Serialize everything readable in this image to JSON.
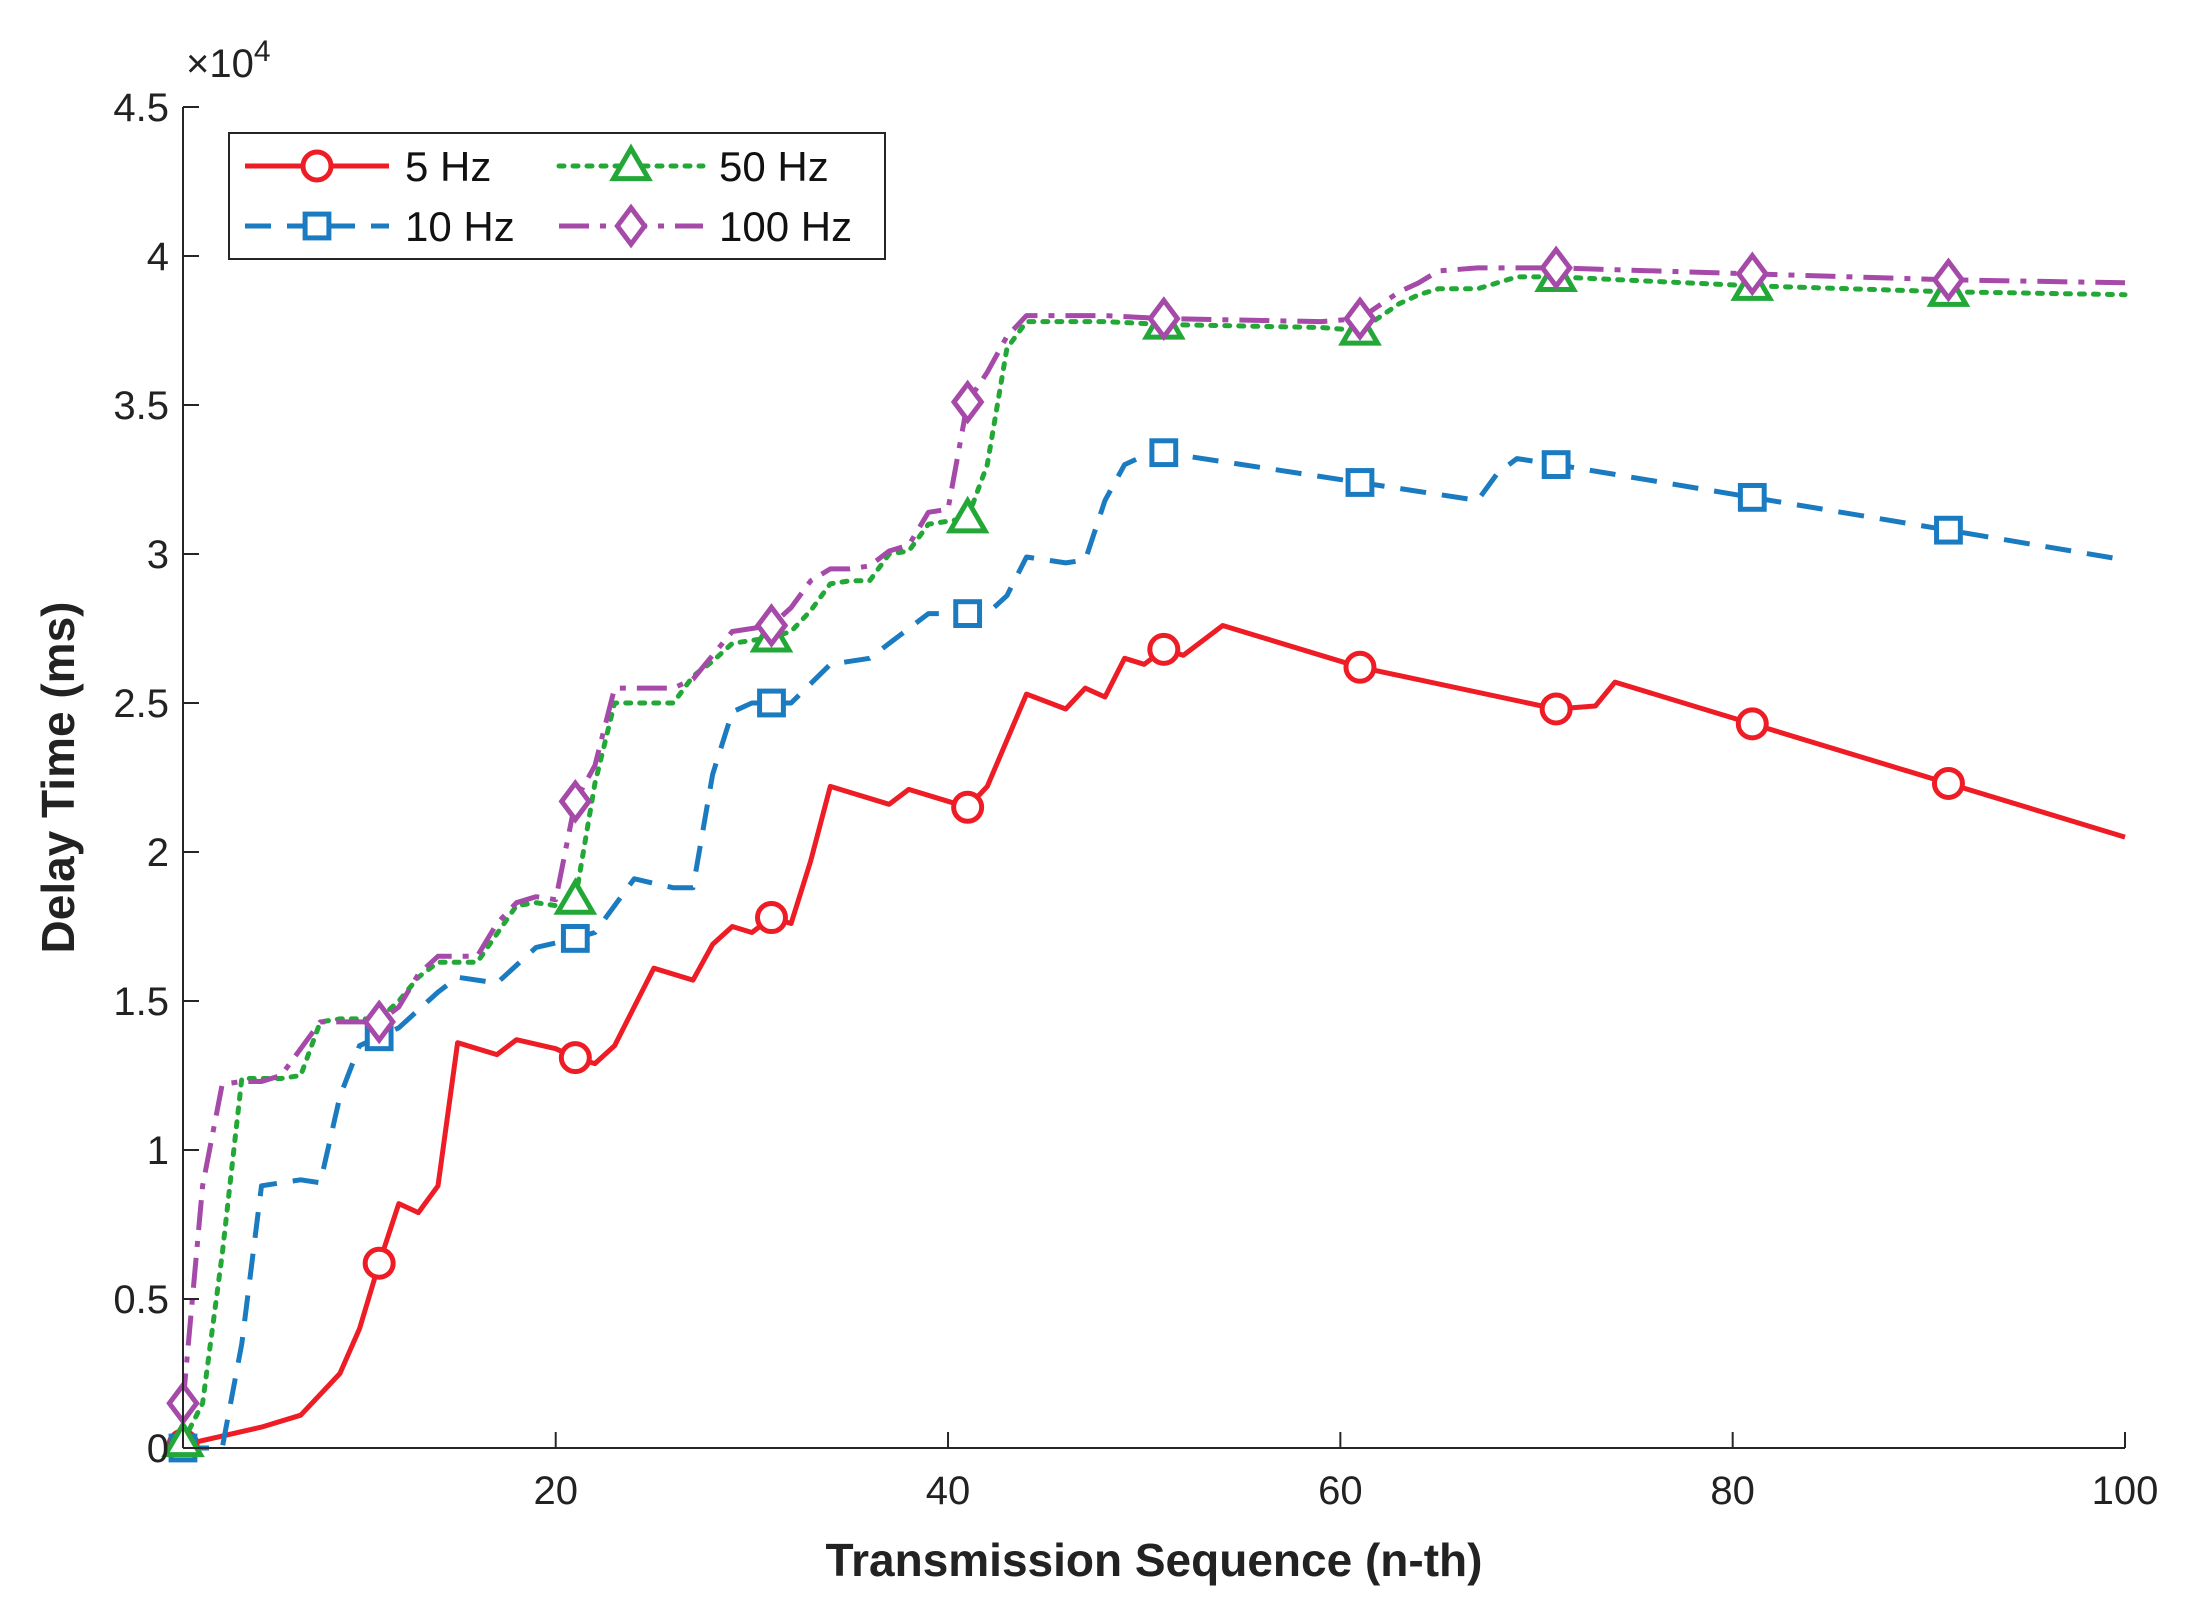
{
  "chart_data": {
    "type": "line",
    "xlabel": "Transmission Sequence (n-th)",
    "ylabel": "Delay Time (ms)",
    "y_exponent_label": "×10",
    "y_exponent_power": "4",
    "xlim": [
      1,
      100
    ],
    "ylim": [
      0,
      45000
    ],
    "xticks": [
      20,
      40,
      60,
      80,
      100
    ],
    "xtick_labels": [
      "20",
      "40",
      "60",
      "80",
      "100"
    ],
    "yticks": [
      0,
      5000,
      10000,
      15000,
      20000,
      25000,
      30000,
      35000,
      40000,
      45000
    ],
    "ytick_labels": [
      "0",
      "0.5",
      "1",
      "1.5",
      "2",
      "2.5",
      "3",
      "3.5",
      "4",
      "4.5"
    ],
    "grid": false,
    "legend_position": "top-left",
    "series": [
      {
        "name": "5 Hz",
        "color": "#ee1c25",
        "dash": "solid",
        "marker": "circle",
        "marker_x": [
          1,
          11,
          21,
          31,
          41,
          51,
          61,
          71,
          81,
          91
        ],
        "x": [
          1,
          3,
          5,
          7,
          9,
          10,
          11,
          12,
          13,
          14,
          15,
          17,
          18,
          20,
          21,
          22,
          23,
          25,
          27,
          28,
          29,
          30,
          31,
          32,
          33,
          34,
          35,
          37,
          38,
          40,
          41,
          42,
          44,
          46,
          47,
          48,
          49,
          50,
          51,
          52,
          54,
          61,
          71,
          73,
          74,
          81,
          91,
          100
        ],
        "y": [
          100,
          400,
          700,
          1100,
          2500,
          4000,
          6200,
          8200,
          7900,
          8800,
          13600,
          13200,
          13700,
          13400,
          13100,
          12900,
          13500,
          16100,
          15700,
          16900,
          17500,
          17300,
          17800,
          17600,
          19700,
          22200,
          22000,
          21600,
          22100,
          21700,
          21500,
          22200,
          25300,
          24800,
          25500,
          25200,
          26500,
          26300,
          26800,
          26600,
          27600,
          26200,
          24800,
          24900,
          25700,
          24300,
          22300,
          20500
        ]
      },
      {
        "name": "10 Hz",
        "color": "#1a7bc1",
        "dash": "dash",
        "marker": "square",
        "marker_x": [
          1,
          11,
          21,
          31,
          41,
          51,
          61,
          71,
          81,
          91
        ],
        "x": [
          1,
          3,
          4,
          5,
          7,
          8,
          9,
          10,
          11,
          12,
          14,
          15,
          17,
          19,
          21,
          22,
          23,
          24,
          26,
          27,
          28,
          29,
          30,
          31,
          32,
          34,
          35,
          36,
          37,
          38,
          39,
          41,
          42,
          43,
          44,
          46,
          47,
          48,
          49,
          50,
          51,
          61,
          67,
          68,
          69,
          71,
          81,
          91,
          100
        ],
        "y": [
          0,
          0,
          3500,
          8800,
          9000,
          8900,
          11800,
          13500,
          13800,
          14100,
          15300,
          15800,
          15600,
          16800,
          17100,
          17300,
          18200,
          19100,
          18800,
          18800,
          22600,
          24700,
          25000,
          25000,
          25000,
          26300,
          26400,
          26500,
          27000,
          27500,
          28000,
          28000,
          28000,
          28600,
          29900,
          29700,
          29800,
          31800,
          33000,
          33300,
          33400,
          32400,
          31800,
          32700,
          33200,
          33000,
          31900,
          30800,
          29800
        ]
      },
      {
        "name": "50 Hz",
        "color": "#23a838",
        "dash": "dot",
        "marker": "triangle",
        "marker_x": [
          1,
          21,
          31,
          41,
          51,
          61,
          71,
          81,
          91
        ],
        "x": [
          1,
          2,
          3,
          4,
          6,
          7,
          8,
          9,
          10,
          11,
          12,
          13,
          14,
          16,
          18,
          19,
          20,
          21,
          22,
          23,
          25,
          26,
          27,
          28,
          29,
          30,
          31,
          32,
          33,
          34,
          35,
          36,
          37,
          38,
          39,
          40,
          41,
          42,
          43,
          44,
          46,
          48,
          51,
          59,
          61,
          63,
          64,
          65,
          67,
          69,
          71,
          81,
          91,
          100
        ],
        "y": [
          200,
          1500,
          6500,
          12400,
          12400,
          12500,
          14300,
          14400,
          14400,
          14400,
          15000,
          15800,
          16300,
          16300,
          18200,
          18300,
          18200,
          18400,
          22300,
          25000,
          25000,
          25000,
          25900,
          26400,
          27000,
          27100,
          27200,
          27400,
          28100,
          29000,
          29100,
          29100,
          30000,
          30100,
          31000,
          31100,
          31200,
          33000,
          36900,
          37800,
          37800,
          37800,
          37700,
          37600,
          37500,
          38400,
          38700,
          38900,
          38900,
          39300,
          39300,
          39000,
          38800,
          38700
        ]
      },
      {
        "name": "100 Hz",
        "color": "#a54aa8",
        "dash": "dashdot",
        "marker": "diamond",
        "marker_x": [
          1,
          11,
          21,
          31,
          41,
          51,
          61,
          71,
          81,
          91
        ],
        "x": [
          1,
          2,
          3,
          4,
          5,
          6,
          7,
          8,
          9,
          10,
          11,
          12,
          13,
          14,
          16,
          17,
          18,
          19,
          20,
          21,
          22,
          23,
          24,
          26,
          27,
          28,
          29,
          30,
          31,
          32,
          33,
          34,
          35,
          36,
          37,
          38,
          39,
          40,
          41,
          42,
          43,
          44,
          46,
          48,
          51,
          59,
          61,
          63,
          64,
          65,
          67,
          69,
          71,
          81,
          91,
          100
        ],
        "y": [
          1500,
          8800,
          12200,
          12300,
          12300,
          12500,
          13400,
          14300,
          14300,
          14300,
          14300,
          14800,
          15900,
          16500,
          16500,
          17600,
          18300,
          18500,
          18400,
          21700,
          22900,
          25500,
          25500,
          25500,
          25800,
          26600,
          27400,
          27500,
          27600,
          28200,
          29100,
          29500,
          29500,
          29600,
          30100,
          30300,
          31400,
          31500,
          35100,
          36100,
          37300,
          38000,
          38000,
          38000,
          37900,
          37800,
          37900,
          38800,
          39100,
          39500,
          39600,
          39600,
          39600,
          39400,
          39200,
          39100
        ]
      }
    ]
  }
}
